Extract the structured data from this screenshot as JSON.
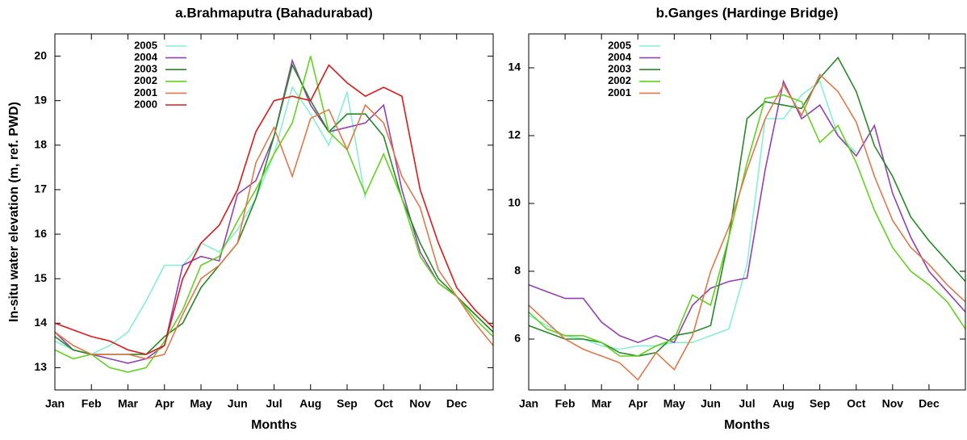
{
  "chart_data": [
    {
      "type": "line",
      "title": "a.Brahmaputra (Bahadurabad)",
      "xlabel": "Months",
      "ylabel": "In-situ water elevation (m, ref. PWD)",
      "x": [
        0,
        0.5,
        1,
        1.5,
        2,
        2.5,
        3,
        3.5,
        4,
        4.5,
        5,
        5.5,
        6,
        6.5,
        7,
        7.5,
        8,
        8.5,
        9,
        9.5,
        10,
        10.5,
        11,
        11.5,
        12
      ],
      "xlim": [
        0,
        12
      ],
      "xticks": [
        {
          "value": 0,
          "label": "Jan"
        },
        {
          "value": 1,
          "label": "Feb"
        },
        {
          "value": 2,
          "label": "Mar"
        },
        {
          "value": 3,
          "label": "Apr"
        },
        {
          "value": 4,
          "label": "May"
        },
        {
          "value": 5,
          "label": "Jun"
        },
        {
          "value": 6,
          "label": "Jul"
        },
        {
          "value": 7,
          "label": "Aug"
        },
        {
          "value": 8,
          "label": "Sep"
        },
        {
          "value": 9,
          "label": "Oct"
        },
        {
          "value": 10,
          "label": "Nov"
        },
        {
          "value": 11,
          "label": "Dec"
        }
      ],
      "ylim": [
        12.5,
        20.5
      ],
      "yticks": [
        13,
        14,
        15,
        16,
        17,
        18,
        19,
        20
      ],
      "grid": false,
      "legend": "upper left",
      "series": [
        {
          "name": "2005",
          "color": "#86f0d2",
          "values": [
            13.6,
            13.4,
            13.3,
            13.5,
            13.8,
            14.5,
            15.3,
            15.3,
            15.8,
            15.6,
            16.1,
            16.8,
            17.8,
            19.3,
            18.7,
            18.0,
            19.2,
            16.8,
            null,
            null,
            null,
            null,
            null,
            null,
            null
          ]
        },
        {
          "name": "2004",
          "color": "#9440b4",
          "values": [
            13.8,
            13.4,
            13.3,
            13.2,
            13.1,
            13.2,
            13.5,
            15.3,
            15.5,
            15.4,
            16.9,
            17.2,
            18.2,
            19.9,
            18.9,
            18.3,
            18.4,
            18.5,
            18.9,
            17.0,
            15.6,
            14.9,
            14.6,
            14.2,
            13.8
          ]
        },
        {
          "name": "2003",
          "color": "#258a25",
          "values": [
            13.7,
            13.4,
            13.3,
            13.3,
            13.3,
            13.3,
            13.7,
            14.0,
            14.8,
            15.3,
            15.8,
            16.8,
            18.2,
            19.8,
            19.0,
            18.3,
            18.7,
            18.7,
            18.2,
            16.8,
            15.8,
            15.0,
            14.6,
            14.2,
            13.8
          ]
        },
        {
          "name": "2002",
          "color": "#62d41e",
          "values": [
            13.4,
            13.2,
            13.3,
            13.0,
            12.9,
            13.0,
            13.6,
            14.3,
            15.3,
            15.5,
            16.3,
            17.0,
            17.8,
            18.5,
            20.0,
            18.3,
            17.9,
            16.9,
            17.8,
            16.8,
            15.5,
            14.9,
            14.6,
            14.1,
            13.7
          ]
        },
        {
          "name": "2001",
          "color": "#e2784a",
          "values": [
            13.8,
            13.5,
            13.3,
            13.3,
            13.3,
            13.2,
            13.3,
            14.2,
            15.0,
            15.3,
            15.8,
            17.6,
            18.4,
            17.3,
            18.6,
            18.8,
            17.9,
            18.9,
            18.5,
            17.3,
            16.6,
            15.2,
            14.6,
            14.0,
            13.5
          ]
        },
        {
          "name": "2000",
          "color": "#e01818",
          "values": [
            14.0,
            13.85,
            13.7,
            13.6,
            13.4,
            13.3,
            13.5,
            15.0,
            15.8,
            16.2,
            17.0,
            18.3,
            19.0,
            19.1,
            19.0,
            19.8,
            19.4,
            19.1,
            19.3,
            19.1,
            17.0,
            15.8,
            14.8,
            14.3,
            13.9
          ]
        }
      ]
    },
    {
      "type": "line",
      "title": "b.Ganges (Hardinge Bridge)",
      "xlabel": "Months",
      "x": [
        0,
        0.5,
        1,
        1.5,
        2,
        2.5,
        3,
        3.5,
        4,
        4.5,
        5,
        5.5,
        6,
        6.5,
        7,
        7.5,
        8,
        8.5,
        9,
        9.5,
        10,
        10.5,
        11,
        11.5,
        12
      ],
      "xlim": [
        0,
        12
      ],
      "xticks": [
        {
          "value": 0,
          "label": "Jan"
        },
        {
          "value": 1,
          "label": "Feb"
        },
        {
          "value": 2,
          "label": "Mar"
        },
        {
          "value": 3,
          "label": "Apr"
        },
        {
          "value": 4,
          "label": "May"
        },
        {
          "value": 5,
          "label": "Jun"
        },
        {
          "value": 6,
          "label": "Jul"
        },
        {
          "value": 7,
          "label": "Aug"
        },
        {
          "value": 8,
          "label": "Sep"
        },
        {
          "value": 9,
          "label": "Oct"
        },
        {
          "value": 10,
          "label": "Nov"
        },
        {
          "value": 11,
          "label": "Dec"
        }
      ],
      "ylim": [
        4.5,
        15
      ],
      "yticks": [
        6,
        8,
        10,
        12,
        14
      ],
      "grid": false,
      "legend": "upper left",
      "series": [
        {
          "name": "2005",
          "color": "#86f0d2",
          "values": [
            6.7,
            6.4,
            6.1,
            6.0,
            5.8,
            5.7,
            5.8,
            5.8,
            5.9,
            5.9,
            6.1,
            6.3,
            8.2,
            12.5,
            12.5,
            13.2,
            13.6,
            12.0,
            11.5,
            null,
            null,
            null,
            null,
            null,
            null
          ]
        },
        {
          "name": "2004",
          "color": "#9440b4",
          "values": [
            7.6,
            7.4,
            7.2,
            7.2,
            6.5,
            6.1,
            5.9,
            6.1,
            5.9,
            7.0,
            7.5,
            7.7,
            7.8,
            11.0,
            13.6,
            12.5,
            12.9,
            12.0,
            11.4,
            12.3,
            10.3,
            9.0,
            8.0,
            7.4,
            6.8
          ]
        },
        {
          "name": "2003",
          "color": "#258a25",
          "values": [
            6.4,
            6.2,
            6.0,
            6.0,
            5.9,
            5.6,
            5.5,
            5.6,
            6.1,
            6.2,
            6.4,
            9.0,
            12.5,
            13.0,
            12.9,
            12.8,
            13.7,
            14.3,
            13.3,
            11.7,
            10.8,
            9.6,
            8.9,
            8.3,
            7.7
          ]
        },
        {
          "name": "2002",
          "color": "#62d41e",
          "values": [
            6.8,
            6.3,
            6.1,
            6.1,
            5.9,
            5.5,
            5.5,
            5.8,
            6.0,
            7.3,
            7.0,
            9.0,
            11.2,
            13.1,
            13.2,
            13.0,
            11.8,
            12.3,
            11.2,
            9.8,
            8.7,
            8.0,
            7.6,
            7.1,
            6.3
          ]
        },
        {
          "name": "2001",
          "color": "#e2784a",
          "values": [
            7.0,
            6.5,
            6.0,
            5.7,
            5.5,
            5.3,
            4.8,
            5.6,
            5.1,
            6.1,
            8.0,
            9.3,
            11.0,
            12.5,
            13.5,
            12.6,
            13.8,
            13.3,
            12.4,
            10.8,
            9.5,
            8.7,
            8.2,
            7.6,
            7.1
          ]
        }
      ]
    }
  ]
}
